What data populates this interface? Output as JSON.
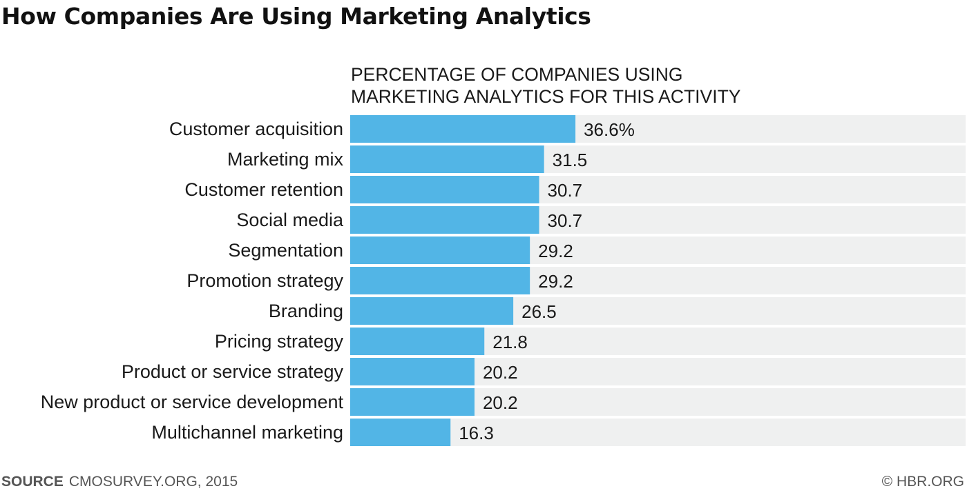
{
  "chart_data": {
    "type": "bar",
    "orientation": "horizontal",
    "title": "How Companies Are Using Marketing Analytics",
    "subtitle_lines": [
      "PERCENTAGE OF COMPANIES USING",
      "MARKETING ANALYTICS FOR THIS ACTIVITY"
    ],
    "categories": [
      "Customer acquisition",
      "Marketing mix",
      "Customer retention",
      "Social media",
      "Segmentation",
      "Promotion strategy",
      "Branding",
      "Pricing strategy",
      "Product or service strategy",
      "New product or service development",
      "Multichannel marketing"
    ],
    "values": [
      36.6,
      31.5,
      30.7,
      30.7,
      29.2,
      29.2,
      26.5,
      21.8,
      20.2,
      20.2,
      16.3
    ],
    "value_labels": [
      "36.6%",
      "31.5",
      "30.7",
      "30.7",
      "29.2",
      "29.2",
      "26.5",
      "21.8",
      "20.2",
      "20.2",
      "16.3"
    ],
    "xlim": [
      0,
      100
    ],
    "grid": false,
    "legend": "none",
    "bar_color": "#52b5e6",
    "track_color": "#eff0f0"
  },
  "footer": {
    "source_label": "SOURCE",
    "source_text": "CMOSURVEY.ORG, 2015",
    "copyright": "© HBR.ORG"
  }
}
